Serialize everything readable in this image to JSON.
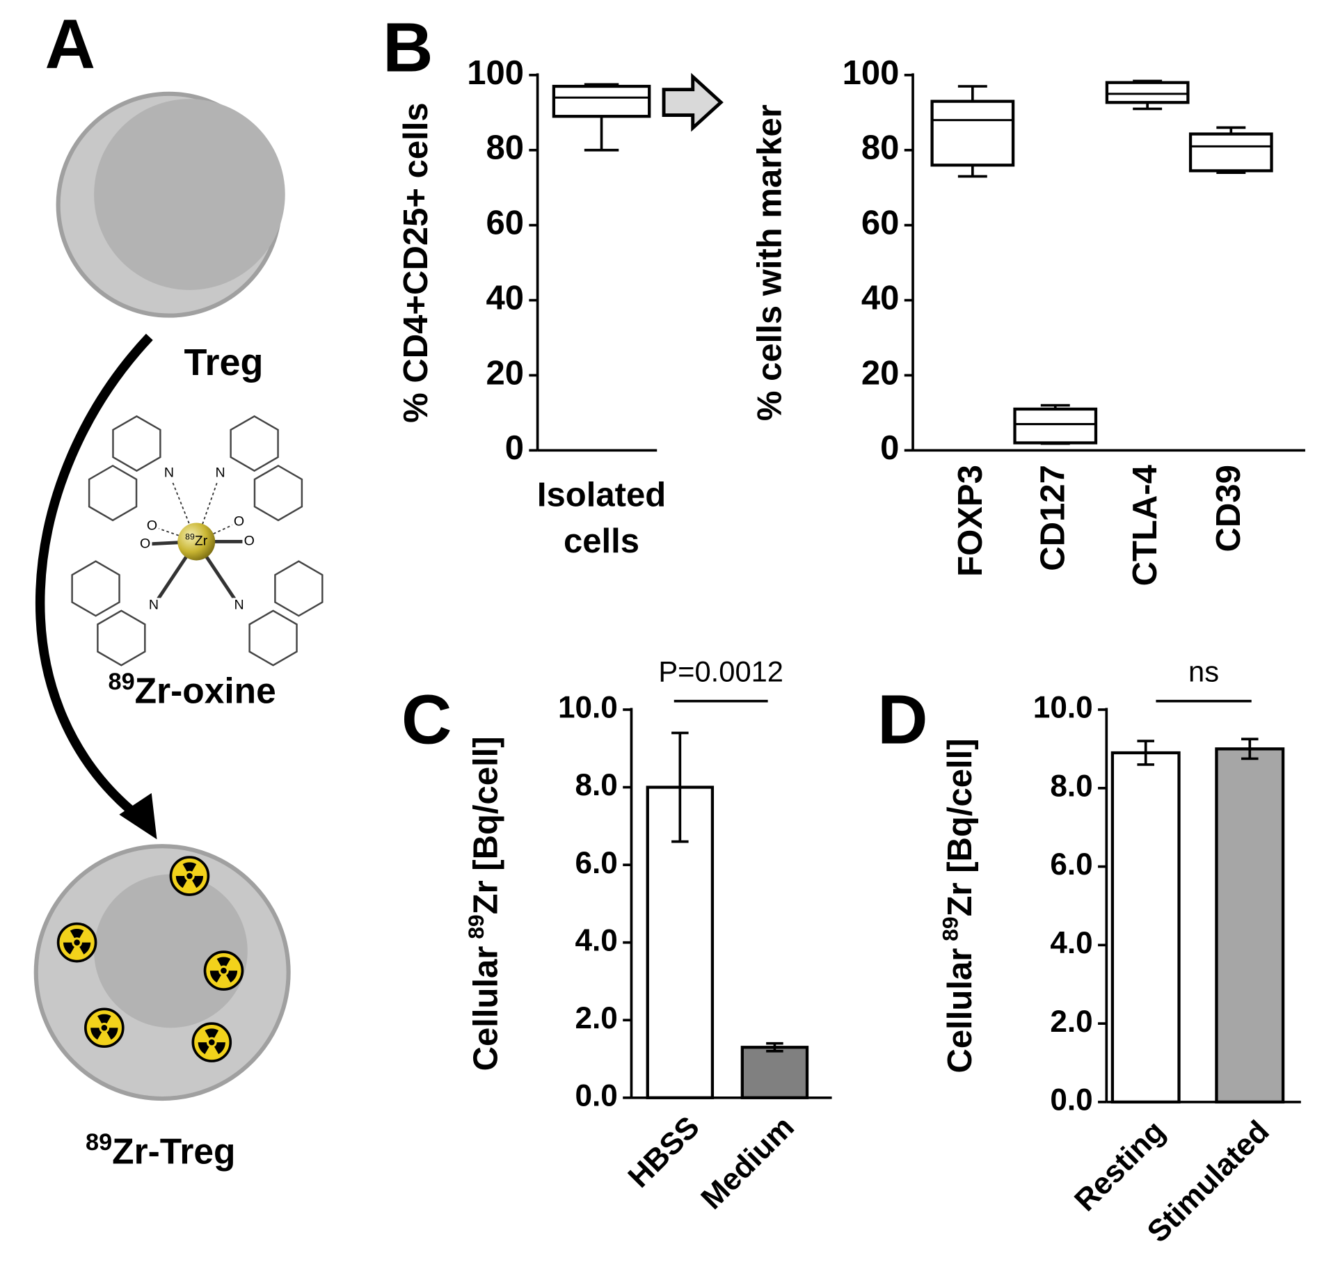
{
  "panel_a": {
    "letter": "A",
    "cell_label": "Treg",
    "reagent_label": [
      "89",
      "Zr-oxine"
    ],
    "result_label": [
      "89",
      "Zr-Treg"
    ],
    "atom_labels": [
      "N",
      "N",
      "O",
      "O",
      "O",
      "O",
      "N",
      "N"
    ],
    "center_atom": [
      "89",
      "Zr"
    ]
  },
  "chart_data": [
    {
      "type": "box",
      "panel": "B",
      "ylabel": "% CD4+CD25+ cells",
      "categories": [
        "Isolated cells"
      ],
      "boxes": [
        {
          "min": 80,
          "q1": 89,
          "median": 94,
          "q3": 97,
          "max": 97.5
        }
      ],
      "ylim": [
        0,
        100
      ],
      "yticks": [
        0,
        20,
        40,
        60,
        80,
        100
      ]
    },
    {
      "type": "box",
      "ylabel": "% cells with marker",
      "categories": [
        "FOXP3",
        "CD127",
        "CTLA-4",
        "CD39"
      ],
      "boxes": [
        {
          "min": 73,
          "q1": 76,
          "median": 88,
          "q3": 93,
          "max": 97
        },
        {
          "min": 1.8,
          "q1": 2,
          "median": 7,
          "q3": 11,
          "max": 12
        },
        {
          "min": 91,
          "q1": 92.7,
          "median": 95,
          "q3": 98,
          "max": 98.4
        },
        {
          "min": 74,
          "q1": 74.5,
          "median": 81,
          "q3": 84.3,
          "max": 86
        }
      ],
      "ylim": [
        0,
        100
      ],
      "yticks": [
        0,
        20,
        40,
        60,
        80,
        100
      ]
    },
    {
      "type": "bar",
      "panel": "C",
      "ylabel": [
        "Cellular",
        "89",
        "Zr [Bq/cell]"
      ],
      "categories": [
        "HBSS",
        "Medium"
      ],
      "values": [
        8.0,
        1.3
      ],
      "errors": [
        1.4,
        0.1
      ],
      "colors": [
        "#ffffff",
        "#808080"
      ],
      "annotation": "P=0.0012",
      "ylim": [
        0,
        10
      ],
      "yticks": [
        {
          "value": 0,
          "label": "0.0"
        },
        {
          "value": 2,
          "label": "2.0"
        },
        {
          "value": 4,
          "label": "4.0"
        },
        {
          "value": 6,
          "label": "6.0"
        },
        {
          "value": 8,
          "label": "8.0"
        },
        {
          "value": 10,
          "label": "10.0"
        }
      ]
    },
    {
      "type": "bar",
      "panel": "D",
      "ylabel": [
        "Cellular",
        "89",
        "Zr [Bq/cell]"
      ],
      "categories": [
        "Resting",
        "Stimulated"
      ],
      "values": [
        8.9,
        9.0
      ],
      "errors": [
        0.3,
        0.25
      ],
      "colors": [
        "#ffffff",
        "#a6a6a6"
      ],
      "annotation": "ns",
      "ylim": [
        0,
        10
      ],
      "yticks": [
        {
          "value": 0,
          "label": "0.0"
        },
        {
          "value": 2,
          "label": "2.0"
        },
        {
          "value": 4,
          "label": "4.0"
        },
        {
          "value": 6,
          "label": "6.0"
        },
        {
          "value": 8,
          "label": "8.0"
        },
        {
          "value": 10,
          "label": "10.0"
        }
      ]
    }
  ]
}
